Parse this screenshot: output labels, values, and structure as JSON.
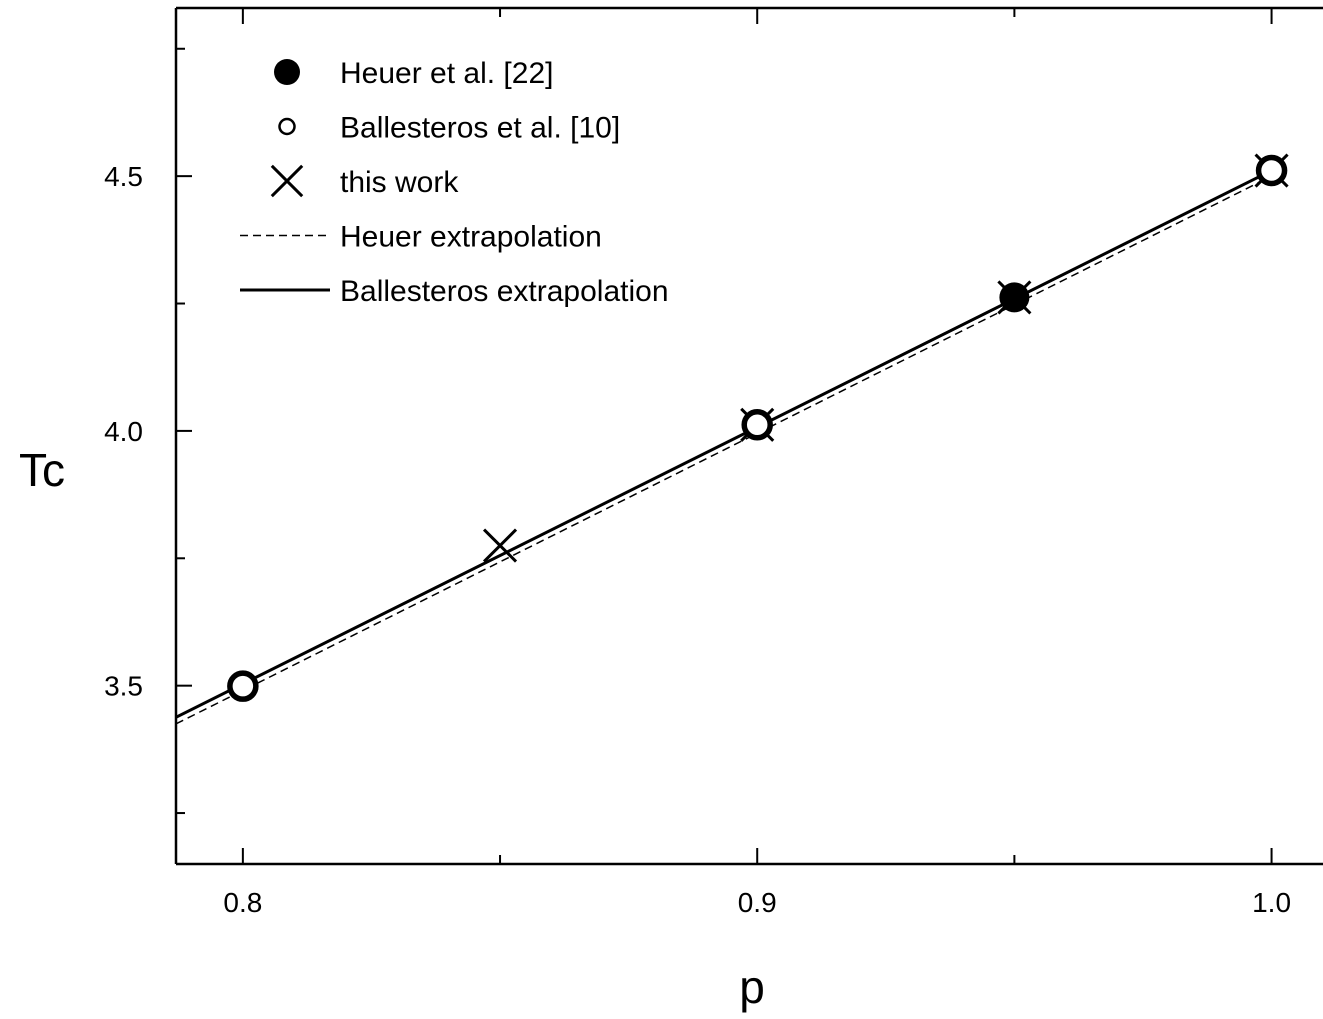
{
  "chart_data": {
    "type": "scatter",
    "xlabel": "p",
    "ylabel": "Tc",
    "xlim": [
      0.787,
      1.01
    ],
    "ylim": [
      3.15,
      4.83
    ],
    "x_ticks": [
      {
        "value": 0.8,
        "label": "0.8"
      },
      {
        "value": 0.9,
        "label": "0.9"
      },
      {
        "value": 1.0,
        "label": "1.0"
      }
    ],
    "x_minor_ticks": [
      0.85,
      0.95
    ],
    "y_ticks": [
      {
        "value": 3.5,
        "label": "3.5"
      },
      {
        "value": 4.0,
        "label": "4.0"
      },
      {
        "value": 4.5,
        "label": "4.5"
      }
    ],
    "y_minor_ticks": [
      3.25,
      3.75,
      4.25,
      4.75
    ],
    "grid": false,
    "legend_position": "top-left",
    "series": [
      {
        "name": "Heuer et al. [22]",
        "marker": "filled-circle",
        "x": [
          0.95
        ],
        "y": [
          4.262
        ]
      },
      {
        "name": "Ballesteros et al. [10]",
        "marker": "open-circle",
        "x": [
          0.8,
          0.9,
          1.0
        ],
        "y": [
          3.499,
          4.012,
          4.511
        ]
      },
      {
        "name": "this work",
        "marker": "x",
        "x": [
          0.85,
          0.9,
          0.95,
          1.0
        ],
        "y": [
          3.775,
          4.012,
          4.262,
          4.511
        ]
      },
      {
        "name": "Heuer extrapolation",
        "marker": "dashed-line",
        "x": [
          0.787,
          1.0
        ],
        "y": [
          3.425,
          4.5
        ]
      },
      {
        "name": "Ballesteros extrapolation",
        "marker": "solid-line",
        "x": [
          0.787,
          1.0
        ],
        "y": [
          3.438,
          4.511
        ]
      }
    ]
  }
}
